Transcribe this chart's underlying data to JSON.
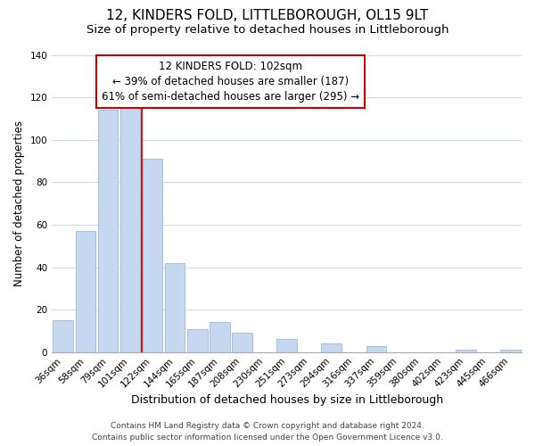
{
  "title": "12, KINDERS FOLD, LITTLEBOROUGH, OL15 9LT",
  "subtitle": "Size of property relative to detached houses in Littleborough",
  "xlabel": "Distribution of detached houses by size in Littleborough",
  "ylabel": "Number of detached properties",
  "bar_labels": [
    "36sqm",
    "58sqm",
    "79sqm",
    "101sqm",
    "122sqm",
    "144sqm",
    "165sqm",
    "187sqm",
    "208sqm",
    "230sqm",
    "251sqm",
    "273sqm",
    "294sqm",
    "316sqm",
    "337sqm",
    "359sqm",
    "380sqm",
    "402sqm",
    "423sqm",
    "445sqm",
    "466sqm"
  ],
  "bar_values": [
    15,
    57,
    114,
    119,
    91,
    42,
    11,
    14,
    9,
    0,
    6,
    0,
    4,
    0,
    3,
    0,
    0,
    0,
    1,
    0,
    1
  ],
  "bar_color": "#c5d8f0",
  "bar_edge_color": "#9ab8d8",
  "vline_x_index": 3,
  "vline_color": "#cc0000",
  "ylim": [
    0,
    140
  ],
  "yticks": [
    0,
    20,
    40,
    60,
    80,
    100,
    120,
    140
  ],
  "annotation_text": "12 KINDERS FOLD: 102sqm\n← 39% of detached houses are smaller (187)\n61% of semi-detached houses are larger (295) →",
  "annotation_box_color": "#ffffff",
  "annotation_box_edge_color": "#cc0000",
  "footer_line1": "Contains HM Land Registry data © Crown copyright and database right 2024.",
  "footer_line2": "Contains public sector information licensed under the Open Government Licence v3.0.",
  "background_color": "#ffffff",
  "grid_color": "#cdd8e8",
  "title_fontsize": 11,
  "subtitle_fontsize": 9.5,
  "xlabel_fontsize": 9,
  "ylabel_fontsize": 8.5,
  "tick_fontsize": 7.5,
  "annotation_fontsize": 8.5,
  "footer_fontsize": 6.5
}
